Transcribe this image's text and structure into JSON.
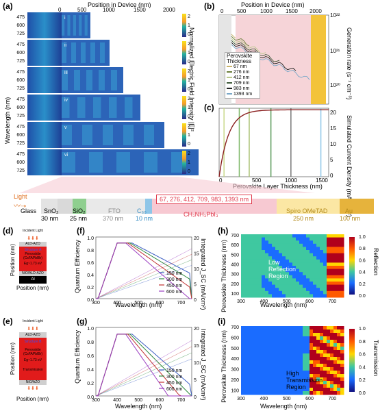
{
  "panels": {
    "a": "(a)",
    "b": "(b)",
    "c": "(c)",
    "d": "(d)",
    "e": "(e)",
    "f": "(f)",
    "g": "(g)",
    "h": "(h)",
    "i": "(i)"
  },
  "panel_a": {
    "top_axis_label": "Position in Device (nm)",
    "top_ticks": [
      "0",
      "500",
      "1000",
      "1500",
      "2000"
    ],
    "y_label": "Wavelength (nm)",
    "y_ticks": [
      "475",
      "600",
      "725"
    ],
    "sub_labels": [
      "i",
      "ii",
      "iii",
      "iv",
      "v",
      "vi"
    ],
    "colorbar_label": "Normalized Electric Field Intensity  |E|²",
    "colorbar_ticks": [
      "2",
      "1",
      "0"
    ]
  },
  "panel_b": {
    "top_axis_label": "Position in Device (nm)",
    "top_ticks": [
      "0",
      "500",
      "1000",
      "1500",
      "2000"
    ],
    "y_label": "Generation rate (s⁻¹ cm⁻³)",
    "y_ticks": [
      "10²²",
      "10²¹",
      "10²⁰"
    ],
    "legend_title": "Perovskite Thickness",
    "legend": [
      "67 nm",
      "276 nm",
      "412 nm",
      "709 nm",
      "983 nm",
      "1393 nm"
    ],
    "legend_colors": [
      "#c9b36a",
      "#6b7d3a",
      "#b9c98a",
      "#3f5a3a",
      "#222222",
      "#7aa8c8"
    ]
  },
  "panel_c": {
    "x_label": "Perovskite Layer Thickness (nm)",
    "x_ticks": [
      "0",
      "500",
      "1000",
      "1500"
    ],
    "y_label": "Simulated Current Density (mA cm⁻²)",
    "y_ticks": [
      "20",
      "15",
      "10",
      "5",
      "0"
    ]
  },
  "device_stack": {
    "light": "Light",
    "layers": [
      {
        "name": "Glass",
        "thickness": ""
      },
      {
        "name": "SnO₂",
        "thickness": "30 nm"
      },
      {
        "name": "SiO₂",
        "thickness": "25 nm"
      },
      {
        "name": "FTO",
        "thickness": "370 nm"
      },
      {
        "name": "C₆₀",
        "thickness": "10 nm"
      },
      {
        "name": "CH₃NH₃PbI₃",
        "thickness": ""
      },
      {
        "name": "Spiro OMeTAD",
        "thickness": "250 nm"
      },
      {
        "name": "Au",
        "thickness": "100 nm"
      }
    ],
    "thickness_list": "67, 276, 412, 709, 983, 1393 nm"
  },
  "panel_d": {
    "incident": "Incident Light",
    "top_layer": "ALD-AZO",
    "structure": "Structure A",
    "perovskite": "Perovskite (CsFAPbIBr)",
    "eg": "Eg~1.73 eV",
    "htl": "NiO/ALD-AZO",
    "bottom": "Al",
    "y_label": "Position (nm)",
    "x_label": "Position (nm)"
  },
  "panel_e": {
    "incident": "Incident Light",
    "top_layer": "ALD-AZO",
    "structure": "Structure B",
    "perovskite": "Perovskite (CsFAPbIBr)",
    "eg": "Eg~1.73 eV",
    "transmission": "Transmission",
    "htl": "NiO/AZO",
    "y_label": "Position (nm)",
    "x_label": "Position (nm)"
  },
  "panel_f": {
    "y_label": "Quantum Efficiency",
    "y2_label": "Integrated J_SC (mA/cm²)",
    "x_label": "Wavelength (nm)",
    "x_ticks": [
      "300",
      "400",
      "500",
      "600",
      "700"
    ],
    "y_ticks": [
      "1.0",
      "0.8",
      "0.6",
      "0.4",
      "0.2",
      "0.0"
    ],
    "y2_ticks": [
      "20",
      "15",
      "10",
      "5",
      "0"
    ],
    "legend": [
      "150 nm",
      "300 nm",
      "450 nm",
      "600 nm"
    ]
  },
  "panel_g": {
    "y_label": "Quantum Efficiency",
    "y2_label": "Integrated J_SC (mA/cm²)",
    "x_label": "Wavelength (nm)",
    "x_ticks": [
      "300",
      "400",
      "500",
      "600",
      "700"
    ],
    "y_ticks": [
      "1.0",
      "0.8",
      "0.6",
      "0.4",
      "0.2",
      "0.0"
    ],
    "y2_ticks": [
      "20",
      "15",
      "10",
      "5",
      "0"
    ],
    "legend": [
      "150 nm",
      "300 nm",
      "450 nm",
      "600 nm"
    ]
  },
  "panel_h": {
    "y_label": "Perovskite Thickness (nm)",
    "x_label": "Wavelength (nm)",
    "x_ticks": [
      "300",
      "400",
      "500",
      "600",
      "700"
    ],
    "y_ticks": [
      "700",
      "600",
      "500",
      "400",
      "300",
      "200",
      "100"
    ],
    "region": "Low Reflection Region",
    "colorbar_label": "Reflection",
    "colorbar_ticks": [
      "1.0",
      "0.8",
      "0.6",
      "0.4",
      "0.2",
      "0.0"
    ]
  },
  "panel_i": {
    "y_label": "Perovskite Thickness (nm)",
    "x_label": "Wavelength (nm)",
    "x_ticks": [
      "300",
      "400",
      "500",
      "600",
      "700"
    ],
    "y_ticks": [
      "700",
      "600",
      "500",
      "400",
      "300",
      "200",
      "100"
    ],
    "region": "High Transmission Region",
    "colorbar_label": "Transmission",
    "colorbar_ticks": [
      "1.0",
      "0.8",
      "0.6",
      "0.4",
      "0.2",
      "0.0"
    ]
  },
  "series_colors": {
    "150": "#3d5fc4",
    "300": "#2e8a3e",
    "450": "#c03030",
    "600": "#9a3cc0"
  }
}
